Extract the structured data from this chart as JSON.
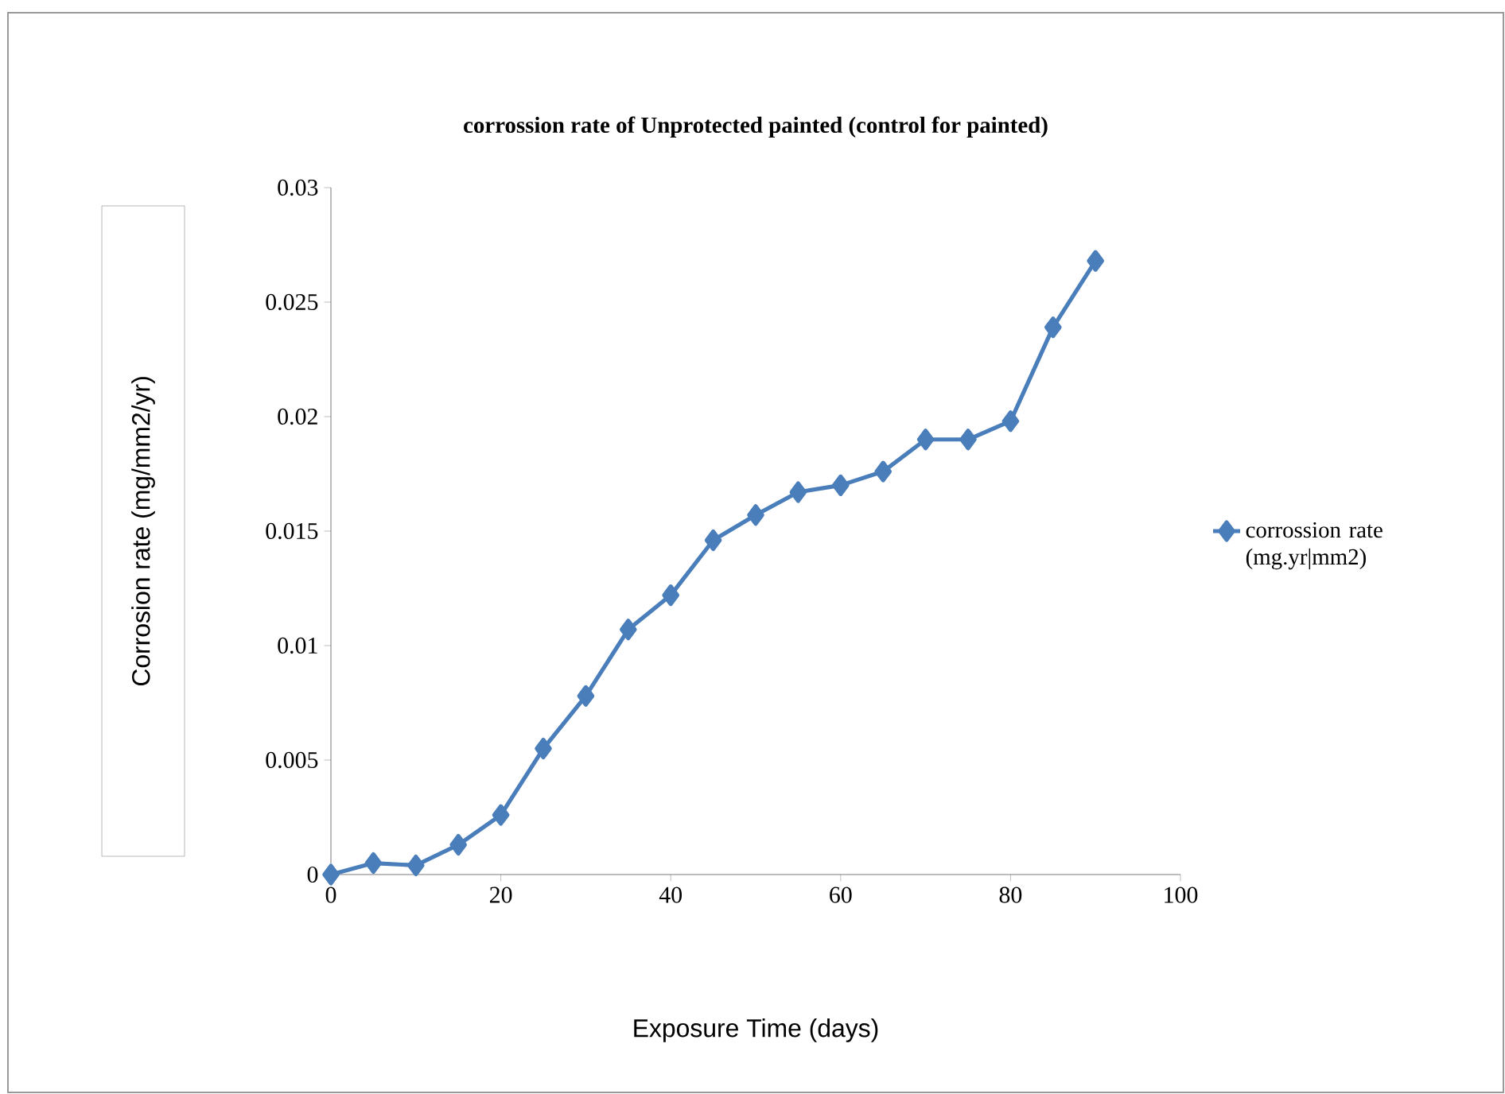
{
  "chart_data": {
    "type": "line",
    "title": "corrossion rate of Unprotected painted (control for painted)",
    "xlabel": "Exposure Time (days)",
    "ylabel": "Corrosion rate (mg/mm2/yr)",
    "x": [
      0,
      5,
      10,
      15,
      20,
      25,
      30,
      35,
      40,
      45,
      50,
      55,
      60,
      65,
      70,
      75,
      80,
      85,
      90
    ],
    "series": [
      {
        "name": "corrossion rate (mg.yr|mm2)",
        "color": "#4a7ebb",
        "values": [
          0,
          0.0005,
          0.0004,
          0.0013,
          0.0026,
          0.0055,
          0.0078,
          0.0107,
          0.0122,
          0.0146,
          0.0157,
          0.0167,
          0.017,
          0.0176,
          0.019,
          0.019,
          0.0198,
          0.0239,
          0.0268
        ]
      }
    ],
    "xlim": [
      0,
      100
    ],
    "xticks": [
      0,
      20,
      40,
      60,
      80,
      100
    ],
    "ylim": [
      0,
      0.03
    ],
    "yticks": [
      0,
      0.005,
      0.01,
      0.015,
      0.02,
      0.025,
      0.03
    ],
    "grid": false,
    "legend": "right",
    "marker": "diamond",
    "line_style": "solid"
  }
}
